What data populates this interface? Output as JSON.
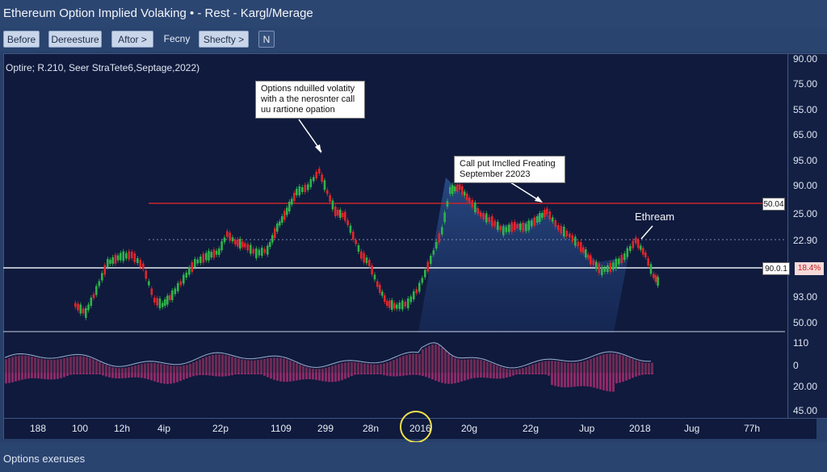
{
  "window": {
    "title": "Ethereum Option Implied Volaking • - Rest - Kargl/Merage"
  },
  "toolbar": {
    "buttons": [
      "Before",
      "Dereesture",
      "Aftor >",
      "Fecny",
      "Shecfty >",
      "N"
    ]
  },
  "chart": {
    "info_line": "Optire;    R.210,    Seer    StraTete6,Septage,2022)",
    "callouts": {
      "options_iv": "Options nduilled volatity with a the nerosnter call uu rartione opation",
      "call_put": "Call put Imclled Freating September 22023",
      "ethream": "Ethream"
    },
    "level_tags": {
      "red_level": "50.04",
      "white_level": "90.0.1",
      "percent": "18.4%"
    }
  },
  "chart_data": {
    "type": "bar",
    "price_axis_ticks": [
      "90.00",
      "75.00",
      "55.00",
      "65.00",
      "95.00",
      "90.00",
      "90.00",
      "25.00",
      "22.90",
      "18.4%",
      "93.00",
      "50.00"
    ],
    "volume_axis_ticks": [
      "110",
      "0",
      "20.00",
      "45.00"
    ],
    "x_ticks": [
      "188",
      "100",
      "12h",
      "4ip",
      "22p",
      "1109",
      "299",
      "28n",
      "2016",
      "20g",
      "22g",
      "Jup",
      "2018",
      "Jug",
      "77h"
    ],
    "legend": "none",
    "grid": false
  },
  "status": {
    "text": "Options exeruses"
  },
  "colors": {
    "up": "#2fb34a",
    "down": "#e0262a",
    "background": "#0f1a3d",
    "level_line": "#c8262a",
    "highlight": "#f0e04a"
  }
}
